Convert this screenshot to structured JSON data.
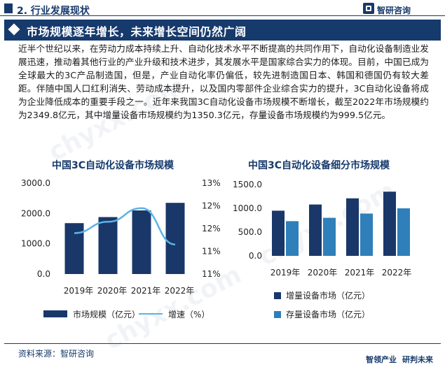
{
  "header": {
    "section_title": "2. 行业发展现状",
    "logo_text": "智研咨询"
  },
  "banner": {
    "title": "市场规模逐年增长，未来增长空间仍然广阔"
  },
  "body": {
    "paragraph": "近半个世纪以来，在劳动力成本持续上升、自动化技术水平不断提高的共同作用下，自动化设备制造业发展迅速，推动着其他行业的产业升级和技术进步，其发展水平是国家综合实力的体现。目前，中国已成为全球最大的3C产品制造国，但是，产业自动化率仍偏低，较先进制造国日本、韩国和德国仍有较大差距。伴随中国人口红利消失、劳动成本提升，以及国内零部件企业综合实力的提升，3C自动化设备将成为企业降低成本的重要手段之一。近年来我国3C自动化设备市场规模不断增长，截至2022年市场规模约为2349.8亿元，其中增量设备市场规模约为1350.3亿元，存量设备市场规模约为999.5亿元。"
  },
  "watermark": "chyxx.com",
  "colors": {
    "navy": "#163a6c",
    "bar_dark": "#1a3769",
    "bar_light": "#2f7fba",
    "line": "#5bb3e6"
  },
  "chart_data": [
    {
      "type": "bar",
      "title": "中国3C自动化设备市场规模",
      "categories": [
        "2019年",
        "2020年",
        "2021年",
        "2022年"
      ],
      "series": [
        {
          "name": "市场规模（亿元）",
          "type": "bar",
          "axis": "left",
          "values": [
            1680,
            1880,
            2100,
            2349.8
          ]
        },
        {
          "name": "增速（%）",
          "type": "line",
          "axis": "right",
          "values": [
            11.9,
            12.15,
            12.45,
            11.65
          ]
        }
      ],
      "y_left": {
        "ticks": [
          "3000.0",
          "2000.0",
          "1000.0",
          "0.0"
        ],
        "range": [
          0,
          3000
        ]
      },
      "y_right": {
        "ticks": [
          "13%",
          "12%",
          "12%",
          "11%",
          "11%"
        ],
        "range": [
          11.0,
          13.0
        ]
      }
    },
    {
      "type": "bar",
      "title": "中国3C自动化设备细分市场规模",
      "categories": [
        "2019年",
        "2020年",
        "2021年",
        "2022年"
      ],
      "series": [
        {
          "name": "增量设备市场（亿元）",
          "values": [
            950,
            1080,
            1210,
            1350.3
          ]
        },
        {
          "name": "存量设备市场（亿元）",
          "values": [
            730,
            800,
            890,
            999.5
          ]
        }
      ],
      "y_left": {
        "ticks": [
          "1500.0",
          "1000.0",
          "500.0",
          "0.0"
        ],
        "range": [
          0,
          1500
        ]
      }
    }
  ],
  "footer": {
    "source": "资料来源：智研咨询",
    "slogan_a": "智领产业",
    "slogan_b": "研判未来"
  }
}
